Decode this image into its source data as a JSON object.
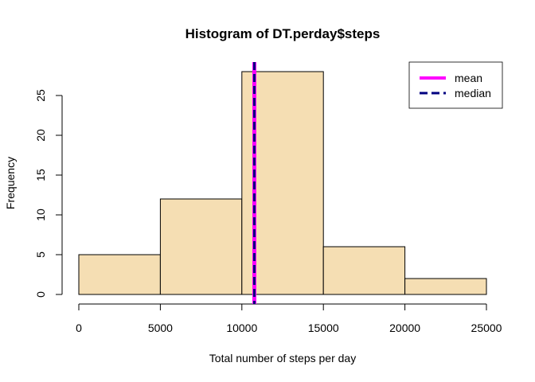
{
  "chart_data": {
    "type": "bar",
    "title": "Histogram of DT.perday$steps",
    "xlabel": "Total number of steps per day",
    "ylabel": "Frequency",
    "bins": [
      {
        "start": 0,
        "end": 5000,
        "count": 5
      },
      {
        "start": 5000,
        "end": 10000,
        "count": 12
      },
      {
        "start": 10000,
        "end": 15000,
        "count": 28
      },
      {
        "start": 15000,
        "end": 20000,
        "count": 6
      },
      {
        "start": 20000,
        "end": 25000,
        "count": 2
      }
    ],
    "xlim": [
      0,
      25000
    ],
    "ylim": [
      0,
      28
    ],
    "xticks": [
      0,
      5000,
      10000,
      15000,
      20000,
      25000
    ],
    "yticks": [
      0,
      5,
      10,
      15,
      20,
      25
    ],
    "bar_color": "#f5deb3",
    "lines": [
      {
        "name": "mean",
        "value": 10766,
        "color": "#ff00ff",
        "style": "solid"
      },
      {
        "name": "median",
        "value": 10765,
        "color": "#000080",
        "style": "dashed"
      }
    ],
    "legend_position": "top-right",
    "grid": false
  }
}
